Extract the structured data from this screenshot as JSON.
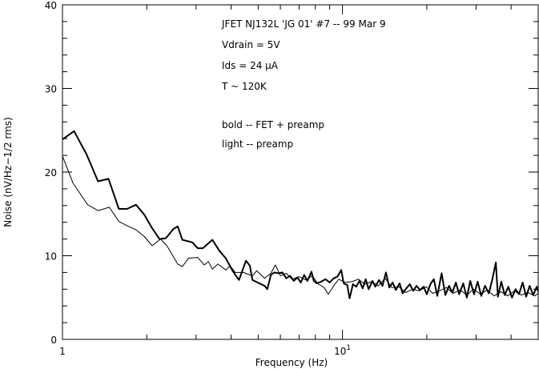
{
  "chart_data": {
    "type": "line",
    "title": "",
    "xlabel": "Frequency (Hz)",
    "ylabel": "Noise (nV/Hz−1/2 rms)",
    "xscale": "log",
    "xlim": [
      1,
      50
    ],
    "ylim": [
      0,
      40
    ],
    "grid": false,
    "x_tick_labels": [
      {
        "value": 1,
        "base": "1",
        "exp": ""
      },
      {
        "value": 10,
        "base": "10",
        "exp": "1"
      }
    ],
    "y_tick_labels": [
      "0",
      "10",
      "20",
      "30",
      "40"
    ],
    "annotations": [
      "JFET NJ132L 'JG 01' #7 -- 99 Mar 9",
      "Vdrain = 5V",
      "Ids = 24 μA",
      "T ~ 120K",
      "bold -- FET + preamp",
      "light -- preamp"
    ],
    "line_color": "#000000",
    "series": [
      {
        "style": "bold",
        "x": [
          1,
          1.1,
          1.22,
          1.34,
          1.46,
          1.59,
          1.7,
          1.83,
          1.96,
          2.09,
          2.22,
          2.34,
          2.49,
          2.58,
          2.68,
          2.91,
          3.04,
          3.17,
          3.43,
          3.63,
          3.83,
          4.05,
          4.27,
          4.52,
          4.67,
          4.77,
          5.27,
          5.39,
          5.55,
          5.7,
          5.9,
          6.1,
          6.3,
          6.5,
          6.7,
          6.9,
          7.1,
          7.3,
          7.5,
          7.75,
          7.9,
          8.1,
          8.4,
          8.7,
          9.0,
          9.3,
          9.6,
          9.9,
          10.1,
          10.4,
          10.6,
          10.9,
          11.2,
          11.5,
          11.8,
          12.1,
          12.4,
          12.8,
          13.1,
          13.5,
          13.9,
          14.3,
          14.7,
          15.1,
          15.5,
          16.0,
          16.4,
          16.9,
          17.4,
          17.9,
          18.4,
          18.9,
          19.5,
          20.0,
          20.6,
          21.2,
          21.8,
          22.6,
          23.3,
          24.0,
          24.7,
          25.4,
          26.1,
          27.0,
          27.8,
          28.6,
          29.5,
          30.4,
          31.3,
          32.3,
          33.3,
          34.3,
          35.3,
          35.9,
          36.9,
          38.0,
          39.1,
          40.3,
          41.5,
          42.7,
          44.0,
          45.3,
          46.6,
          48.0,
          49.4,
          50
        ],
        "y": [
          23.9,
          24.9,
          22.1,
          18.9,
          19.2,
          15.6,
          15.6,
          16.1,
          14.9,
          13.3,
          12.0,
          12.1,
          13.2,
          13.5,
          11.9,
          11.6,
          10.9,
          10.9,
          11.9,
          10.6,
          9.7,
          8.2,
          7.1,
          9.4,
          8.8,
          7.1,
          6.4,
          6.0,
          7.7,
          8.0,
          7.9,
          8.0,
          7.3,
          7.6,
          7.0,
          7.4,
          6.8,
          7.7,
          7.0,
          8.1,
          7.0,
          6.7,
          6.9,
          7.2,
          6.8,
          7.3,
          7.5,
          8.3,
          6.7,
          6.5,
          4.9,
          6.6,
          6.3,
          7.0,
          6.1,
          7.2,
          6.0,
          7.0,
          6.3,
          7.1,
          6.4,
          8.0,
          6.2,
          6.8,
          5.9,
          6.7,
          5.5,
          6.1,
          6.6,
          5.8,
          6.4,
          5.9,
          6.3,
          5.4,
          6.6,
          7.2,
          5.2,
          7.9,
          5.3,
          6.4,
          5.6,
          6.8,
          5.4,
          6.7,
          5.0,
          7.0,
          5.4,
          6.9,
          5.2,
          6.4,
          5.5,
          7.2,
          9.2,
          5.1,
          6.9,
          5.3,
          6.3,
          5.0,
          6.0,
          5.4,
          6.8,
          5.1,
          6.4,
          5.3,
          6.3,
          5.7
        ]
      },
      {
        "style": "light",
        "x": [
          1,
          1.09,
          1.23,
          1.34,
          1.47,
          1.59,
          1.7,
          1.83,
          1.96,
          2.09,
          2.24,
          2.36,
          2.58,
          2.68,
          2.82,
          3.04,
          3.21,
          3.32,
          3.43,
          3.59,
          3.83,
          3.97,
          4.14,
          4.42,
          4.77,
          4.94,
          5.27,
          5.55,
          5.76,
          6.0,
          6.3,
          6.6,
          7.0,
          7.4,
          7.8,
          8.2,
          8.6,
          8.9,
          9.3,
          9.7,
          10.2,
          10.8,
          11.4,
          12.0,
          12.7,
          13.4,
          14.2,
          15.0,
          15.9,
          16.8,
          17.8,
          18.8,
          19.9,
          21.0,
          22.2,
          23.5,
          24.8,
          26.3,
          27.8,
          29.4,
          31.1,
          32.9,
          34.8,
          36.8,
          38.9,
          41.1,
          43.5,
          46.0,
          48.6,
          50
        ],
        "y": [
          21.9,
          18.7,
          16.1,
          15.4,
          15.8,
          14.1,
          13.6,
          13.1,
          12.3,
          11.2,
          12.0,
          11.2,
          9.0,
          8.7,
          9.7,
          9.8,
          8.9,
          9.3,
          8.4,
          9.0,
          8.3,
          8.8,
          8.0,
          8.0,
          7.6,
          8.2,
          7.3,
          7.9,
          8.9,
          7.6,
          7.9,
          7.2,
          7.5,
          7.1,
          7.6,
          6.6,
          6.2,
          5.4,
          6.4,
          7.2,
          6.8,
          6.9,
          7.2,
          6.6,
          6.9,
          6.4,
          7.3,
          6.2,
          6.3,
          5.6,
          6.0,
          5.8,
          6.3,
          5.5,
          5.8,
          6.2,
          5.5,
          5.9,
          5.3,
          6.0,
          5.4,
          5.9,
          5.2,
          5.7,
          5.2,
          5.8,
          5.3,
          5.6,
          5.2,
          5.5
        ]
      }
    ]
  }
}
